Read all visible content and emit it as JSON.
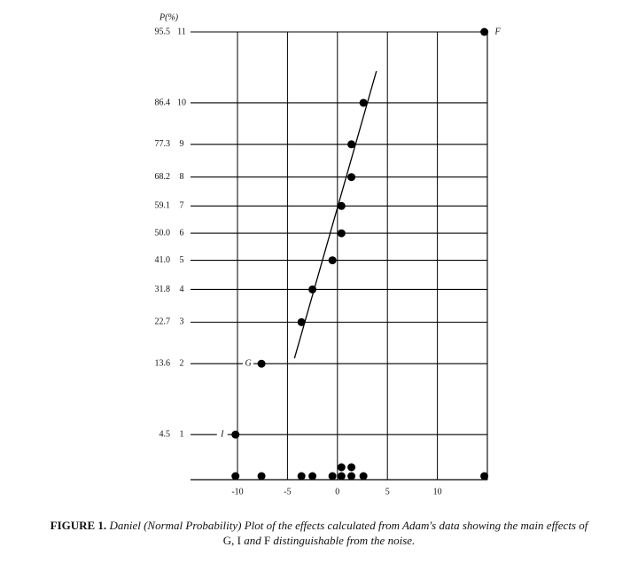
{
  "chart_data": {
    "type": "normal-probability-scatter",
    "y_axis_label": "P(%)",
    "yscale": "normal-probability",
    "ylim": [
      1.9,
      95.5
    ],
    "yticks": [
      4.5,
      13.6,
      22.7,
      31.8,
      {
        "value": 41,
        "label": "41.0"
      },
      {
        "value": 50,
        "label": "50.0"
      },
      59.1,
      68.2,
      77.3,
      86.4,
      95.5
    ],
    "rank_labels": [
      1,
      2,
      3,
      4,
      5,
      6,
      7,
      8,
      9,
      10,
      11
    ],
    "xlim": [
      -14.7,
      15
    ],
    "xticks": [
      -10,
      -5,
      0,
      5,
      10
    ],
    "grid": true,
    "color": "#000000",
    "series": [
      {
        "x": [
          -10.2,
          -7.6,
          -3.6,
          -2.5,
          -0.5,
          0.4,
          0.4,
          1.4,
          1.4,
          2.6,
          14.7
        ],
        "y": [
          4.5,
          13.6,
          22.7,
          31.8,
          41,
          50,
          59.1,
          68.2,
          77.3,
          86.4,
          95.5
        ],
        "point_labels": [
          "I",
          "G",
          null,
          null,
          null,
          null,
          null,
          null,
          null,
          null,
          "F"
        ]
      }
    ],
    "fit_line": {
      "x": [
        -4.3,
        3.9
      ],
      "y": [
        14.6,
        91.4
      ]
    },
    "dot_plot": true,
    "caption": {
      "label": "FIGURE 1.",
      "segments": [
        "Daniel (Normal Probability) Plot of the effects calculated from Adam's data showing the main effects of",
        "G, I",
        "and",
        "F",
        "distinguishable from the noise."
      ]
    }
  }
}
